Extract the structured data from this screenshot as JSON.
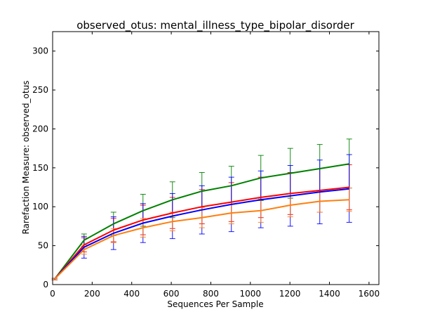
{
  "chart_data": {
    "type": "line",
    "title": "observed_otus: mental_illness_type_bipolar_disorder",
    "xlabel": "Sequences Per Sample",
    "ylabel": "Rarefaction Measure: observed_otus",
    "xlim": [
      0,
      1650
    ],
    "ylim": [
      0,
      325
    ],
    "xticks": [
      0,
      200,
      400,
      600,
      800,
      1000,
      1200,
      1400,
      1600
    ],
    "yticks": [
      0,
      50,
      100,
      150,
      200,
      250,
      300
    ],
    "grid": false,
    "legend": "none",
    "x": [
      10,
      159,
      308,
      457,
      606,
      755,
      904,
      1053,
      1202,
      1351,
      1500
    ],
    "series": [
      {
        "color": "#008000",
        "values": [
          7,
          57,
          78,
          95,
          109,
          120,
          127,
          137,
          143,
          149,
          155
        ],
        "err_low": [
          6,
          49,
          63,
          75,
          86,
          96,
          103,
          108,
          111,
          119,
          124
        ],
        "err_high": [
          8,
          65,
          93,
          116,
          132,
          144,
          152,
          166,
          175,
          180,
          187
        ]
      },
      {
        "color": "#ff0000",
        "values": [
          7,
          51,
          70,
          83,
          92,
          100,
          106,
          112,
          117,
          121,
          125
        ],
        "err_low": [
          6,
          42,
          55,
          64,
          72,
          78,
          81,
          86,
          90,
          93,
          96
        ],
        "err_high": [
          8,
          60,
          85,
          102,
          112,
          122,
          131,
          138,
          144,
          149,
          154
        ]
      },
      {
        "color": "#0000ff",
        "values": [
          7,
          48,
          66,
          79,
          88,
          96,
          103,
          109,
          114,
          119,
          123
        ],
        "err_low": [
          6,
          34,
          45,
          54,
          59,
          65,
          68,
          73,
          75,
          78,
          80
        ],
        "err_high": [
          8,
          62,
          87,
          104,
          117,
          127,
          138,
          146,
          153,
          160,
          167
        ]
      },
      {
        "color": "#ff7f0e",
        "values": [
          7,
          45,
          63,
          73,
          81,
          86,
          92,
          95,
          102,
          107,
          109
        ],
        "err_low": [
          6,
          39,
          54,
          61,
          69,
          73,
          78,
          80,
          87,
          93,
          94
        ],
        "err_high": [
          8,
          51,
          72,
          85,
          93,
          99,
          106,
          110,
          117,
          121,
          124
        ]
      }
    ]
  }
}
